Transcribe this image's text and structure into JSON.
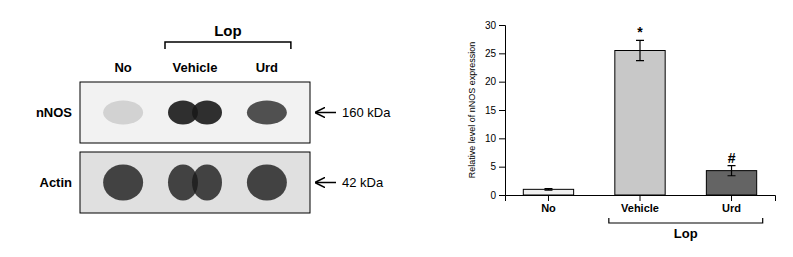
{
  "chart_data": [
    {
      "type": "blot",
      "categories": [
        "No",
        "Vehicle",
        "Urd"
      ],
      "rows": [
        {
          "label": "nNOS",
          "annotation": "160 kDa"
        },
        {
          "label": "Actin",
          "annotation": "42 kDa"
        }
      ],
      "annotations": [
        {
          "text": "Lop",
          "span": [
            "Vehicle",
            "Urd"
          ]
        }
      ]
    },
    {
      "type": "bar",
      "categories": [
        "No",
        "Vehicle",
        "Urd"
      ],
      "values": [
        1.0,
        25.5,
        4.3
      ],
      "errors": [
        0.15,
        1.8,
        0.9
      ],
      "colors": [
        "#f0f0f0",
        "#c8c8c8",
        "#646464"
      ],
      "ylabel": "Relative level of nNOS expression",
      "ylim": [
        0,
        30
      ],
      "yticks": [
        0,
        5,
        10,
        15,
        20,
        25,
        30
      ],
      "annotations": [
        {
          "text": "*",
          "category": "Vehicle"
        },
        {
          "text": "#",
          "category": "Urd"
        },
        {
          "text": "Lop",
          "span": [
            "Vehicle",
            "Urd"
          ]
        }
      ]
    }
  ]
}
